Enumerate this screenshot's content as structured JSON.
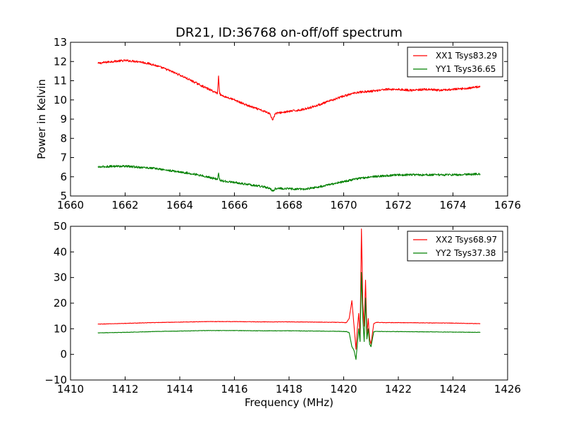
{
  "figure_title": "DR21, ID:36768 on-off/off spectrum",
  "chart_data": [
    {
      "type": "line",
      "title": "",
      "xlabel": "",
      "ylabel": "Power in Kelvin",
      "xlim": [
        1660,
        1676
      ],
      "ylim": [
        5,
        13
      ],
      "xticks": [
        "1660",
        "1662",
        "1664",
        "1666",
        "1668",
        "1670",
        "1672",
        "1674",
        "1676"
      ],
      "yticks": [
        "5",
        "6",
        "7",
        "8",
        "9",
        "10",
        "11",
        "12",
        "13"
      ],
      "grid": false,
      "legend_position": "top-right",
      "series": [
        {
          "name": "XX1 Tsys83.29",
          "color": "#ff0000",
          "x": [
            1661.0,
            1661.5,
            1662.0,
            1662.5,
            1663.0,
            1663.5,
            1664.0,
            1664.5,
            1665.0,
            1665.3,
            1665.38,
            1665.42,
            1665.46,
            1665.5,
            1666.0,
            1666.5,
            1667.0,
            1667.3,
            1667.4,
            1667.5,
            1668.0,
            1668.5,
            1669.0,
            1669.5,
            1670.0,
            1670.5,
            1671.0,
            1671.5,
            1672.0,
            1672.5,
            1673.0,
            1673.5,
            1674.0,
            1674.5,
            1675.0
          ],
          "y": [
            11.9,
            12.0,
            12.05,
            12.0,
            11.85,
            11.6,
            11.3,
            10.95,
            10.6,
            10.4,
            10.35,
            11.25,
            10.35,
            10.25,
            10.0,
            9.7,
            9.45,
            9.3,
            8.95,
            9.3,
            9.4,
            9.5,
            9.7,
            9.95,
            10.2,
            10.4,
            10.45,
            10.55,
            10.55,
            10.5,
            10.55,
            10.5,
            10.55,
            10.6,
            10.7
          ]
        },
        {
          "name": "YY1 Tsys36.65",
          "color": "#008000",
          "x": [
            1661.0,
            1661.5,
            1662.0,
            1662.5,
            1663.0,
            1663.5,
            1664.0,
            1664.5,
            1665.0,
            1665.3,
            1665.38,
            1665.42,
            1665.46,
            1665.5,
            1666.0,
            1666.5,
            1667.0,
            1667.3,
            1667.4,
            1667.5,
            1668.0,
            1668.5,
            1669.0,
            1669.5,
            1670.0,
            1670.5,
            1671.0,
            1671.5,
            1672.0,
            1672.5,
            1673.0,
            1673.5,
            1674.0,
            1674.5,
            1675.0
          ],
          "y": [
            6.5,
            6.55,
            6.55,
            6.5,
            6.45,
            6.35,
            6.25,
            6.15,
            6.0,
            5.9,
            5.85,
            6.2,
            5.85,
            5.8,
            5.7,
            5.6,
            5.5,
            5.4,
            5.25,
            5.4,
            5.38,
            5.35,
            5.45,
            5.6,
            5.75,
            5.9,
            6.0,
            6.05,
            6.1,
            6.1,
            6.1,
            6.1,
            6.1,
            6.12,
            6.15
          ]
        }
      ]
    },
    {
      "type": "line",
      "title": "",
      "xlabel": "Frequency (MHz)",
      "ylabel": "",
      "xlim": [
        1410,
        1426
      ],
      "ylim": [
        -10,
        50
      ],
      "xticks": [
        "1410",
        "1412",
        "1414",
        "1416",
        "1418",
        "1420",
        "1422",
        "1424",
        "1426"
      ],
      "yticks": [
        "−10",
        "0",
        "10",
        "20",
        "30",
        "40",
        "50"
      ],
      "grid": false,
      "legend_position": "top-right",
      "series": [
        {
          "name": "XX2 Tsys68.97",
          "color": "#ff0000",
          "x": [
            1411.0,
            1412.0,
            1413.0,
            1414.0,
            1415.0,
            1416.0,
            1417.0,
            1418.0,
            1419.0,
            1419.8,
            1420.1,
            1420.2,
            1420.3,
            1420.38,
            1420.45,
            1420.5,
            1420.55,
            1420.6,
            1420.65,
            1420.7,
            1420.75,
            1420.8,
            1420.85,
            1420.9,
            1420.95,
            1421.0,
            1421.1,
            1421.2,
            1421.5,
            1422.0,
            1423.0,
            1424.0,
            1425.0
          ],
          "y": [
            11.8,
            12.1,
            12.4,
            12.6,
            12.8,
            12.8,
            12.7,
            12.7,
            12.6,
            12.5,
            12.4,
            14.0,
            21.0,
            11.0,
            2.0,
            10.0,
            16.0,
            7.0,
            49.0,
            20.0,
            11.0,
            29.0,
            8.0,
            14.0,
            6.0,
            4.0,
            12.0,
            12.5,
            12.4,
            12.4,
            12.3,
            12.2,
            12.0
          ]
        },
        {
          "name": "YY2 Tsys37.38",
          "color": "#008000",
          "x": [
            1411.0,
            1412.0,
            1413.0,
            1414.0,
            1415.0,
            1416.0,
            1417.0,
            1418.0,
            1419.0,
            1419.8,
            1420.1,
            1420.2,
            1420.3,
            1420.38,
            1420.45,
            1420.5,
            1420.55,
            1420.6,
            1420.65,
            1420.7,
            1420.75,
            1420.8,
            1420.85,
            1420.9,
            1420.95,
            1421.0,
            1421.1,
            1421.2,
            1421.5,
            1422.0,
            1423.0,
            1424.0,
            1425.0
          ],
          "y": [
            8.4,
            8.6,
            8.9,
            9.1,
            9.3,
            9.3,
            9.2,
            9.2,
            9.1,
            9.0,
            8.9,
            8.5,
            3.0,
            1.5,
            -2.0,
            4.0,
            10.0,
            5.0,
            32.0,
            14.0,
            5.0,
            22.0,
            6.0,
            10.0,
            4.0,
            3.0,
            8.8,
            9.0,
            8.9,
            8.9,
            8.8,
            8.7,
            8.6
          ]
        }
      ]
    }
  ]
}
